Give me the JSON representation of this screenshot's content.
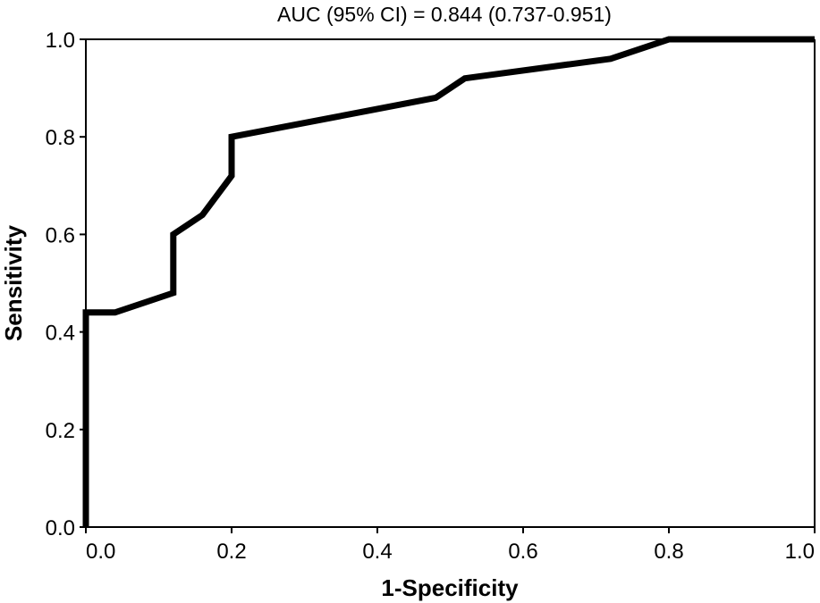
{
  "chart_data": {
    "type": "line",
    "title": "AUC (95% CI) = 0.844 (0.737-0.951)",
    "xlabel": "1-Specificity",
    "ylabel": "Sensitivity",
    "xlim": [
      0,
      1
    ],
    "ylim": [
      0,
      1
    ],
    "x_ticks": [
      "0.0",
      "0.2",
      "0.4",
      "0.6",
      "0.8",
      "1.0"
    ],
    "y_ticks": [
      "0.0",
      "0.2",
      "0.4",
      "0.6",
      "0.8",
      "1.0"
    ],
    "grid": false,
    "legend": "none",
    "line_color": "#000000",
    "series": [
      {
        "x": [
          0.0,
          0.0,
          0.04,
          0.12,
          0.12,
          0.16,
          0.2,
          0.2,
          0.48,
          0.52,
          0.72,
          0.8,
          1.0
        ],
        "y": [
          0.0,
          0.44,
          0.44,
          0.48,
          0.6,
          0.64,
          0.72,
          0.8,
          0.88,
          0.92,
          0.96,
          1.0,
          1.0
        ]
      }
    ]
  }
}
